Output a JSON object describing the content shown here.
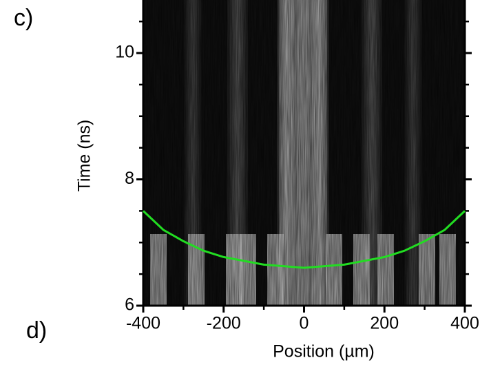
{
  "chart_data": {
    "type": "line",
    "panel_labels": [
      "c)",
      "d)"
    ],
    "xlabel": "Position (µm)",
    "ylabel": "Time (ns)",
    "x": [
      -400,
      -350,
      -300,
      -250,
      -200,
      -100,
      0,
      100,
      200,
      250,
      300,
      350,
      400
    ],
    "series": [
      {
        "color": "#22dd22",
        "values": [
          7.5,
          7.2,
          7.02,
          6.87,
          6.77,
          6.65,
          6.6,
          6.65,
          6.77,
          6.87,
          7.02,
          7.2,
          7.5
        ]
      }
    ],
    "xlim": [
      -400,
      400
    ],
    "xticks": [
      -400,
      -200,
      0,
      200,
      400
    ],
    "ylim": [
      6,
      10.84
    ],
    "yticks": [
      6,
      8,
      10
    ]
  }
}
